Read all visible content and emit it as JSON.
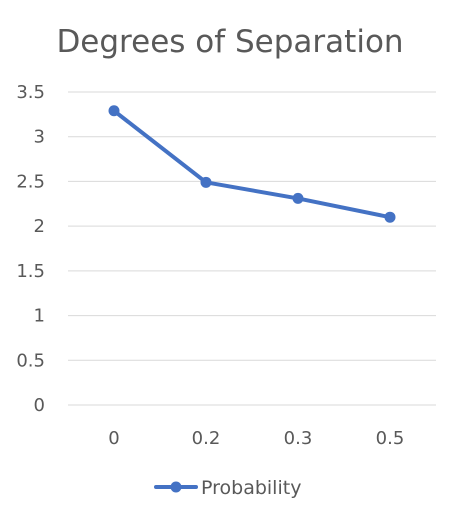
{
  "chart_data": {
    "type": "line",
    "title": "Degrees of Separation",
    "xlabel": "",
    "ylabel": "",
    "categories": [
      "0",
      "0.2",
      "0.3",
      "0.5"
    ],
    "series": [
      {
        "name": "Probability",
        "values": [
          3.29,
          2.49,
          2.31,
          2.1
        ],
        "color": "#4472C4"
      }
    ],
    "ylim": [
      0,
      3.5
    ],
    "y_ticks": [
      0,
      0.5,
      1,
      1.5,
      2,
      2.5,
      3,
      3.5
    ],
    "y_tick_labels": [
      "0",
      "0.5",
      "1",
      "1.5",
      "2",
      "2.5",
      "3",
      "3.5"
    ],
    "grid": true,
    "legend_position": "bottom",
    "gridline_color": "#D9D9D9",
    "text_color": "#595959"
  }
}
